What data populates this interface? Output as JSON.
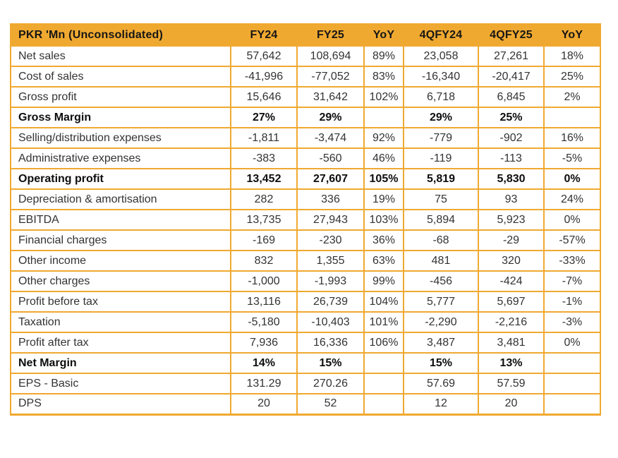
{
  "theme": {
    "accent_color": "#F0A930",
    "header_text_color": "#161616",
    "body_text_color": "#333333",
    "page_background": "#ffffff"
  },
  "table": {
    "columns": [
      "PKR 'Mn (Unconsolidated)",
      "FY24",
      "FY25",
      "YoY",
      "4QFY24",
      "4QFY25",
      "YoY"
    ],
    "rows": [
      {
        "label": "Net sales",
        "bold": false,
        "values": [
          "57,642",
          "108,694",
          "89%",
          "23,058",
          "27,261",
          "18%"
        ]
      },
      {
        "label": "Cost of sales",
        "bold": false,
        "values": [
          "-41,996",
          "-77,052",
          "83%",
          "-16,340",
          "-20,417",
          "25%"
        ]
      },
      {
        "label": "Gross profit",
        "bold": false,
        "values": [
          "15,646",
          "31,642",
          "102%",
          "6,718",
          "6,845",
          "2%"
        ]
      },
      {
        "label": "Gross Margin",
        "bold": true,
        "values": [
          "27%",
          "29%",
          "",
          "29%",
          "25%",
          ""
        ]
      },
      {
        "label": "Selling/distribution expenses",
        "bold": false,
        "values": [
          "-1,811",
          "-3,474",
          "92%",
          "-779",
          "-902",
          "16%"
        ]
      },
      {
        "label": "Administrative expenses",
        "bold": false,
        "values": [
          "-383",
          "-560",
          "46%",
          "-119",
          "-113",
          "-5%"
        ]
      },
      {
        "label": "Operating profit",
        "bold": true,
        "values": [
          "13,452",
          "27,607",
          "105%",
          "5,819",
          "5,830",
          "0%"
        ]
      },
      {
        "label": "Depreciation & amortisation",
        "bold": false,
        "values": [
          "282",
          "336",
          "19%",
          "75",
          "93",
          "24%"
        ]
      },
      {
        "label": "EBITDA",
        "bold": false,
        "values": [
          "13,735",
          "27,943",
          "103%",
          "5,894",
          "5,923",
          "0%"
        ]
      },
      {
        "label": "Financial charges",
        "bold": false,
        "values": [
          "-169",
          "-230",
          "36%",
          "-68",
          "-29",
          "-57%"
        ]
      },
      {
        "label": "Other income",
        "bold": false,
        "values": [
          "832",
          "1,355",
          "63%",
          "481",
          "320",
          "-33%"
        ]
      },
      {
        "label": "Other charges",
        "bold": false,
        "values": [
          "-1,000",
          "-1,993",
          "99%",
          "-456",
          "-424",
          "-7%"
        ]
      },
      {
        "label": "Profit before tax",
        "bold": false,
        "values": [
          "13,116",
          "26,739",
          "104%",
          "5,777",
          "5,697",
          "-1%"
        ]
      },
      {
        "label": "Taxation",
        "bold": false,
        "values": [
          "-5,180",
          "-10,403",
          "101%",
          "-2,290",
          "-2,216",
          "-3%"
        ]
      },
      {
        "label": "Profit after tax",
        "bold": false,
        "values": [
          "7,936",
          "16,336",
          "106%",
          "3,487",
          "3,481",
          "0%"
        ]
      },
      {
        "label": "Net Margin",
        "bold": true,
        "values": [
          "14%",
          "15%",
          "",
          "15%",
          "13%",
          ""
        ]
      },
      {
        "label": "EPS - Basic",
        "bold": false,
        "values": [
          "131.29",
          "270.26",
          "",
          "57.69",
          "57.59",
          ""
        ]
      },
      {
        "label": "DPS",
        "bold": false,
        "values": [
          "20",
          "52",
          "",
          "12",
          "20",
          ""
        ]
      }
    ]
  }
}
